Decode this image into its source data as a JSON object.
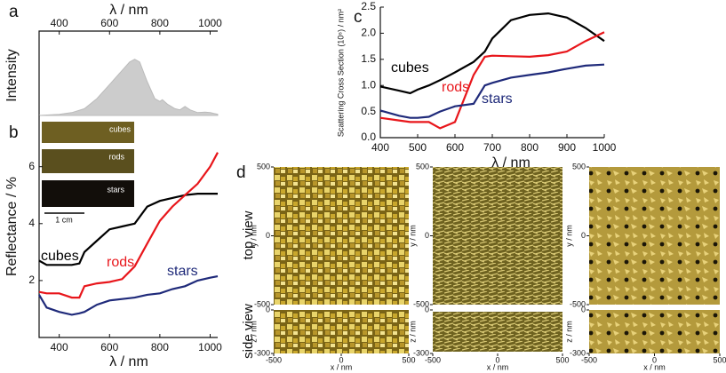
{
  "chart_data": [
    {
      "type": "area",
      "panel_label": "a",
      "xlabel": "λ / nm",
      "ylabel": "Intensity",
      "x": [
        320,
        400,
        450,
        500,
        550,
        600,
        650,
        680,
        700,
        720,
        750,
        780,
        800,
        810,
        830,
        860,
        880,
        900,
        920,
        950,
        980,
        1000,
        1030
      ],
      "values": [
        0,
        0.02,
        0.05,
        0.12,
        0.3,
        0.55,
        0.8,
        0.95,
        1.0,
        0.95,
        0.6,
        0.3,
        0.25,
        0.28,
        0.2,
        0.12,
        0.1,
        0.16,
        0.1,
        0.05,
        0.06,
        0.05,
        0.02
      ],
      "color": "#cccccc",
      "xlim": [
        320,
        1030
      ],
      "xticks": [
        400,
        600,
        800,
        1000
      ],
      "ylim": [
        0,
        1.5
      ]
    },
    {
      "type": "line",
      "panel_label": "b",
      "xlabel": "λ / nm",
      "ylabel": "Reflectance / %",
      "x": [
        320,
        350,
        400,
        450,
        480,
        500,
        550,
        600,
        650,
        700,
        750,
        800,
        850,
        900,
        950,
        1000,
        1030
      ],
      "series": [
        {
          "name": "cubes",
          "color": "#000000",
          "values": [
            2.7,
            2.55,
            2.55,
            2.55,
            2.6,
            3.0,
            3.4,
            3.8,
            3.9,
            4.0,
            4.6,
            4.8,
            4.9,
            5.0,
            5.05,
            5.05,
            5.05
          ]
        },
        {
          "name": "rods",
          "color": "#e8161b",
          "values": [
            1.6,
            1.55,
            1.55,
            1.4,
            1.4,
            1.8,
            1.9,
            1.95,
            2.05,
            2.5,
            3.3,
            4.1,
            4.6,
            5.0,
            5.4,
            6.0,
            6.5
          ]
        },
        {
          "name": "stars",
          "color": "#1f2a7a",
          "values": [
            1.5,
            1.05,
            0.9,
            0.8,
            0.85,
            0.9,
            1.15,
            1.3,
            1.35,
            1.4,
            1.5,
            1.55,
            1.7,
            1.8,
            2.0,
            2.1,
            2.15
          ]
        }
      ],
      "xlim": [
        320,
        1030
      ],
      "xticks": [
        400,
        600,
        800,
        1000
      ],
      "ylim": [
        0,
        7.8
      ],
      "yticks": [
        2,
        4,
        6
      ],
      "inset": {
        "labels": [
          "cubes",
          "rods",
          "stars"
        ],
        "scale_bar": "1 cm"
      }
    },
    {
      "type": "line",
      "panel_label": "c",
      "xlabel": "λ / nm",
      "ylabel": "Scattering Cross Section (10⁶) / nm²",
      "x": [
        400,
        450,
        480,
        500,
        530,
        560,
        600,
        650,
        680,
        700,
        750,
        800,
        850,
        900,
        950,
        1000
      ],
      "series": [
        {
          "name": "cubes",
          "color": "#000000",
          "values": [
            0.98,
            0.9,
            0.85,
            0.92,
            1.0,
            1.1,
            1.25,
            1.45,
            1.65,
            1.9,
            2.25,
            2.35,
            2.38,
            2.3,
            2.1,
            1.85
          ]
        },
        {
          "name": "rods",
          "color": "#e8161b",
          "values": [
            0.38,
            0.33,
            0.3,
            0.3,
            0.3,
            0.18,
            0.3,
            1.2,
            1.55,
            1.57,
            1.56,
            1.55,
            1.58,
            1.65,
            1.85,
            2.02
          ]
        },
        {
          "name": "stars",
          "color": "#1f2a7a",
          "values": [
            0.52,
            0.42,
            0.38,
            0.38,
            0.4,
            0.5,
            0.6,
            0.65,
            1.0,
            1.05,
            1.15,
            1.2,
            1.25,
            1.32,
            1.38,
            1.4
          ]
        }
      ],
      "xlim": [
        400,
        1000
      ],
      "xticks": [
        400,
        500,
        600,
        700,
        800,
        900,
        1000
      ],
      "ylim": [
        0,
        2.5
      ],
      "yticks": [
        {
          "value": 0,
          "label": "0.0"
        },
        0.5,
        {
          "value": 1,
          "label": "1.0"
        },
        1.5,
        {
          "value": 2,
          "label": "2.0"
        },
        2.5
      ]
    }
  ],
  "panel_d": {
    "label": "d",
    "row_labels": [
      "top view",
      "side view"
    ],
    "y_axis_label": "y / nm",
    "ylim": [
      -500,
      500
    ],
    "y_ticks": [
      500,
      0,
      -500
    ],
    "z_axis_label": "z / nm",
    "zlim": [
      -300,
      0
    ],
    "z_ticks": [
      0,
      -300
    ],
    "x_axis_label": "x / nm",
    "xlim": [
      -500,
      500
    ],
    "x_ticks": [
      -500,
      0,
      500
    ]
  }
}
